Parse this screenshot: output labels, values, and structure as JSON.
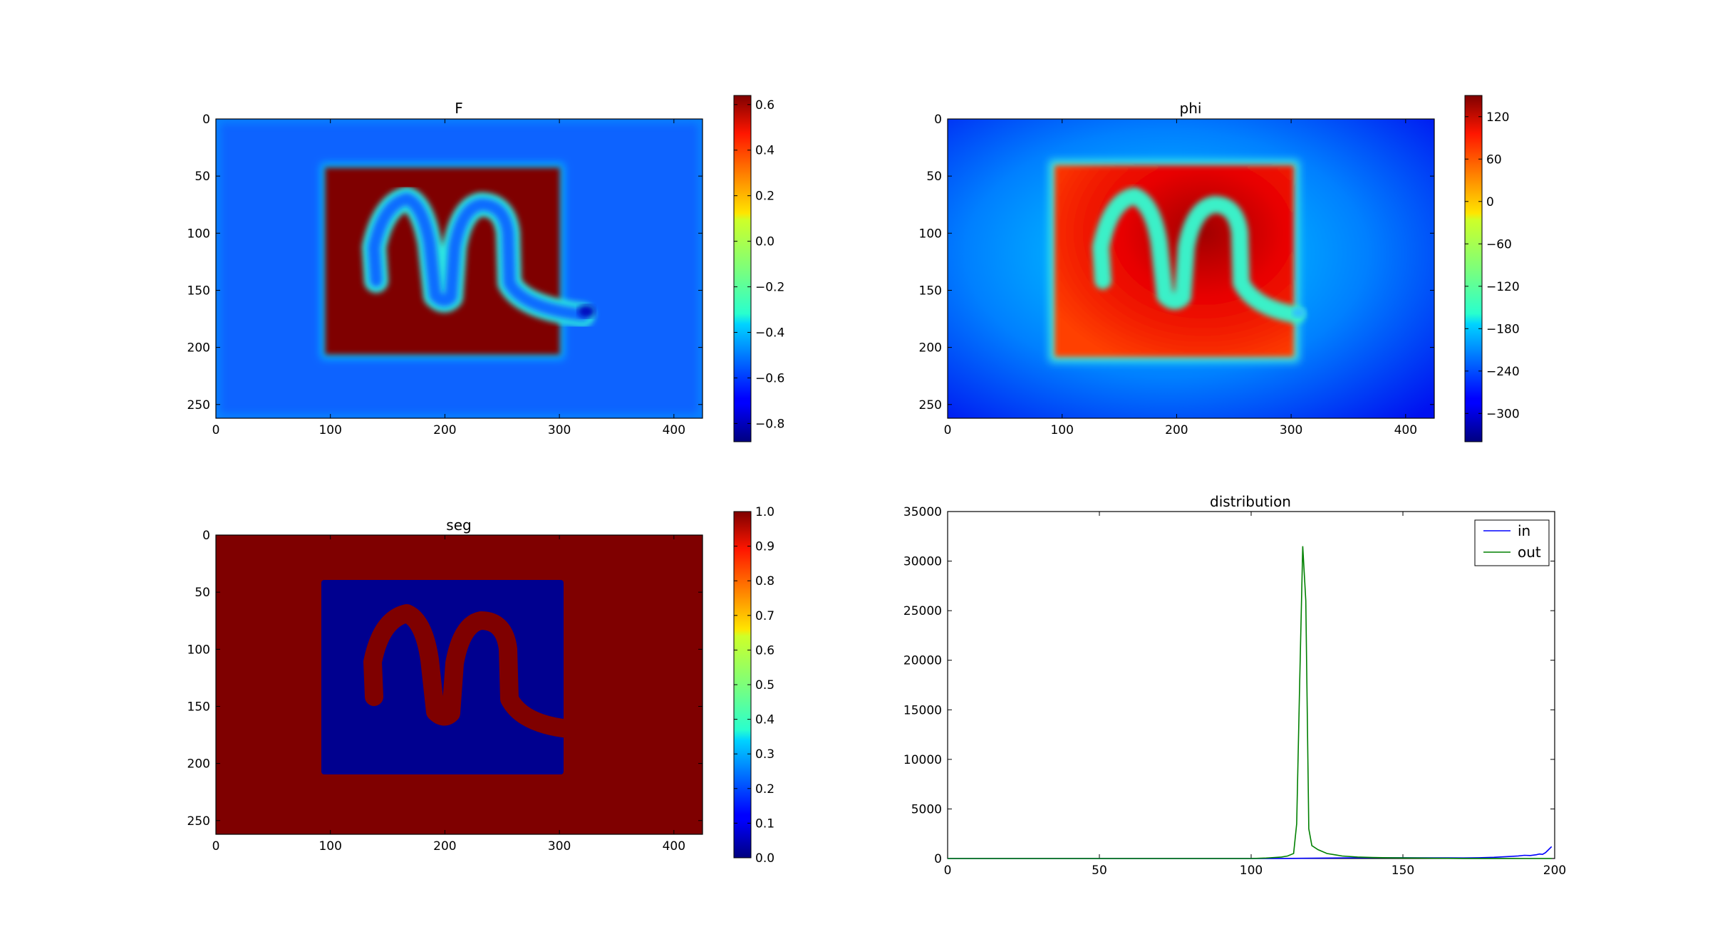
{
  "chart_data": [
    {
      "type": "heatmap",
      "title": "F",
      "xticks": [
        0,
        100,
        200,
        300,
        400
      ],
      "yticks": [
        0,
        50,
        100,
        150,
        200,
        250
      ],
      "xlim": [
        0,
        425
      ],
      "ylim": [
        0,
        262
      ],
      "colorbar": {
        "range": [
          -0.88,
          0.64
        ],
        "ticks": [
          "0.6",
          "0.4",
          "0.2",
          "0.0",
          "−0.2",
          "−0.4",
          "−0.6",
          "−0.8"
        ],
        "tick_values": [
          0.6,
          0.4,
          0.2,
          0.0,
          -0.2,
          -0.4,
          -0.6,
          -0.8
        ]
      },
      "background_level": "low",
      "square_level": "high",
      "curve_level": "low",
      "colormap": "jet"
    },
    {
      "type": "heatmap",
      "title": "phi",
      "xticks": [
        0,
        100,
        200,
        300,
        400
      ],
      "yticks": [
        0,
        50,
        100,
        150,
        200,
        250
      ],
      "xlim": [
        0,
        425
      ],
      "ylim": [
        0,
        262
      ],
      "colorbar": {
        "range": [
          -340,
          150
        ],
        "ticks": [
          "120",
          "60",
          "0",
          "−60",
          "−120",
          "−180",
          "−240",
          "−300"
        ],
        "tick_values": [
          120,
          60,
          0,
          -60,
          -120,
          -180,
          -240,
          -300
        ]
      },
      "colormap": "jet"
    },
    {
      "type": "heatmap",
      "title": "seg",
      "xticks": [
        0,
        100,
        200,
        300,
        400
      ],
      "yticks": [
        0,
        50,
        100,
        150,
        200,
        250
      ],
      "xlim": [
        0,
        425
      ],
      "ylim": [
        0,
        262
      ],
      "colorbar": {
        "range": [
          0,
          1
        ],
        "ticks": [
          "1.0",
          "0.9",
          "0.8",
          "0.7",
          "0.6",
          "0.5",
          "0.4",
          "0.3",
          "0.2",
          "0.1",
          "0.0"
        ],
        "tick_values": [
          1.0,
          0.9,
          0.8,
          0.7,
          0.6,
          0.5,
          0.4,
          0.3,
          0.2,
          0.1,
          0.0
        ]
      },
      "colormap": "jet"
    },
    {
      "type": "line",
      "title": "distribution",
      "xlim": [
        0,
        200
      ],
      "ylim": [
        0,
        35000
      ],
      "xticks": [
        "0",
        "50",
        "100",
        "150",
        "200"
      ],
      "yticks": [
        "0",
        "5000",
        "10000",
        "15000",
        "20000",
        "25000",
        "30000",
        "35000"
      ],
      "legend_position": "top-right",
      "series": [
        {
          "name": "in",
          "color": "#0000ff",
          "x": [
            0,
            100,
            110,
            120,
            130,
            140,
            150,
            160,
            170,
            175,
            180,
            185,
            188,
            190,
            192,
            194,
            195,
            196,
            197,
            198,
            199
          ],
          "y": [
            0,
            0,
            10,
            30,
            60,
            80,
            80,
            70,
            60,
            80,
            120,
            200,
            260,
            320,
            300,
            380,
            450,
            420,
            600,
            900,
            1200
          ]
        },
        {
          "name": "out",
          "color": "#008000",
          "x": [
            0,
            50,
            100,
            105,
            110,
            112,
            114,
            115,
            116,
            117,
            118,
            119,
            120,
            122,
            125,
            128,
            130,
            135,
            140,
            145,
            150,
            155,
            160,
            165,
            170,
            175,
            180,
            185,
            190,
            195,
            199
          ],
          "y": [
            0,
            0,
            0,
            50,
            150,
            250,
            500,
            3500,
            18000,
            31500,
            26000,
            3000,
            1300,
            900,
            500,
            350,
            250,
            150,
            100,
            80,
            60,
            50,
            30,
            20,
            10,
            10,
            5,
            5,
            0,
            0,
            0
          ]
        }
      ]
    }
  ]
}
